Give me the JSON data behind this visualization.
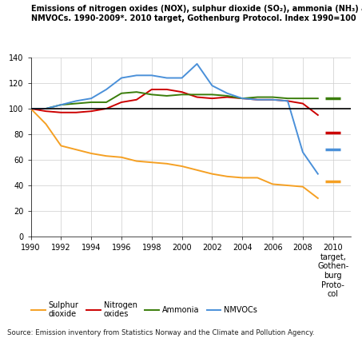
{
  "title_line1": "Emissions of nitrogen oxides (NOX), sulphur dioxide (SO₂), ammonia (NH₃) and",
  "title_line2": "NMVOCs. 1990-2009*. 2010 target, Gothenburg Protocol. Index 1990=100",
  "source": "Source: Emission inventory from Statistics Norway and the Climate and Pollution Agency.",
  "years": [
    1990,
    1991,
    1992,
    1993,
    1994,
    1995,
    1996,
    1997,
    1998,
    1999,
    2000,
    2001,
    2002,
    2003,
    2004,
    2005,
    2006,
    2007,
    2008,
    2009
  ],
  "sulphur_dioxide": [
    100,
    88,
    71,
    68,
    65,
    63,
    62,
    59,
    58,
    57,
    55,
    52,
    49,
    47,
    46,
    46,
    41,
    40,
    39,
    30
  ],
  "nitrogen_oxides": [
    100,
    98,
    97,
    97,
    98,
    100,
    105,
    107,
    115,
    115,
    113,
    109,
    108,
    109,
    108,
    107,
    107,
    106,
    104,
    95
  ],
  "ammonia": [
    100,
    100,
    103,
    104,
    105,
    105,
    112,
    113,
    111,
    110,
    111,
    111,
    111,
    110,
    108,
    109,
    109,
    108,
    108,
    108
  ],
  "nmvocs": [
    100,
    100,
    103,
    106,
    108,
    115,
    124,
    126,
    126,
    124,
    124,
    135,
    118,
    112,
    108,
    107,
    107,
    106,
    66,
    49
  ],
  "target_so2": 43,
  "target_nox": 81,
  "target_nh3": 108,
  "target_nmvocs": 68,
  "sulphur_color": "#F5A023",
  "nitrogen_color": "#CC0000",
  "ammonia_color": "#3A7D0A",
  "nmvocs_color": "#4A90D9",
  "horizontal_line_y": 100,
  "ylim": [
    0,
    140
  ],
  "yticks": [
    0,
    20,
    40,
    60,
    80,
    100,
    120,
    140
  ],
  "xticks": [
    1990,
    1992,
    1994,
    1996,
    1998,
    2000,
    2002,
    2004,
    2006,
    2008,
    2010
  ]
}
